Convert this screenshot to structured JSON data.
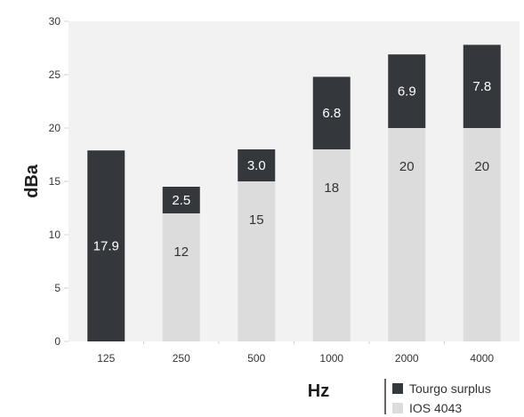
{
  "chart_data": {
    "type": "bar",
    "stacked": true,
    "categories": [
      "125",
      "250",
      "500",
      "1000",
      "2000",
      "4000"
    ],
    "series": [
      {
        "name": "IOS 4043",
        "color": "#dcdcdc",
        "values": [
          0,
          12,
          15,
          18,
          20,
          20
        ],
        "labels": [
          "",
          "12",
          "15",
          "18",
          "20",
          "20"
        ]
      },
      {
        "name": "Tourgo surplus",
        "color": "#34383d",
        "values": [
          17.9,
          2.5,
          3.0,
          6.8,
          6.9,
          7.8
        ],
        "labels": [
          "17.9",
          "2.5",
          "3.0",
          "6.8",
          "6.9",
          "7.8"
        ]
      }
    ],
    "xlabel": "Hz",
    "ylabel": "dBa",
    "ylim": [
      0,
      30
    ],
    "yticks": [
      "0",
      "5",
      "10",
      "15",
      "20",
      "25",
      "30"
    ],
    "grid": false,
    "plot_background": "#f2f2f2",
    "legend": {
      "placement": "bottom-right",
      "order": [
        "Tourgo surplus",
        "IOS 4043"
      ]
    }
  }
}
